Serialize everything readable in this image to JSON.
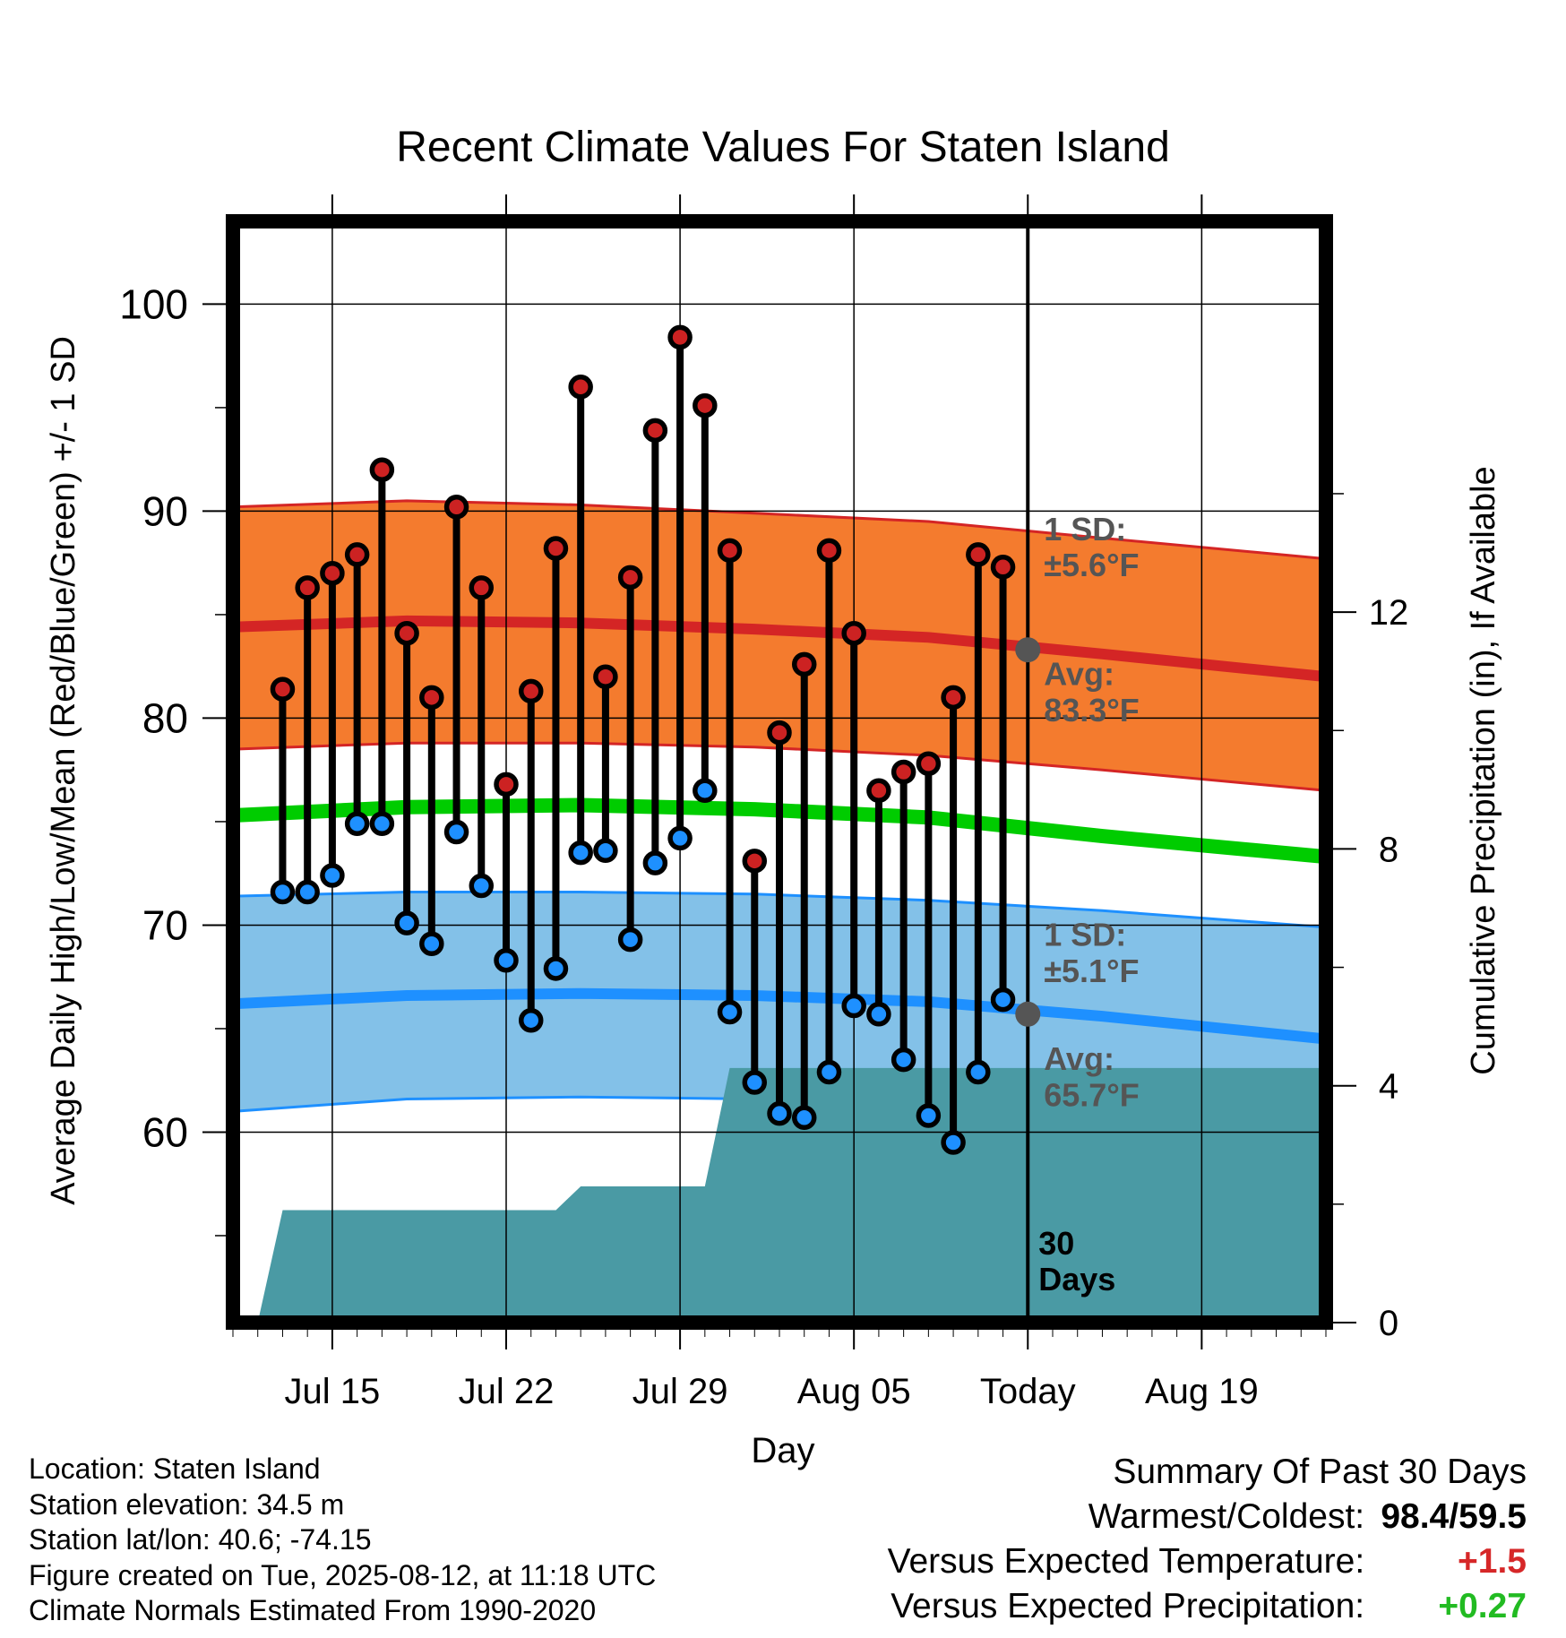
{
  "chart_data": {
    "type": "line",
    "title": "Recent Climate Values For Staten Island",
    "xlabel": "Day",
    "ylabel": "Average Daily High/Low/Mean (Red/Blue/Green) +/- 1 SD",
    "y2label": "Cumulative Precipitation (in), If Available",
    "ylim": [
      50.8,
      104
    ],
    "y2lim": [
      0,
      18.6
    ],
    "xlim": [
      "2025-07-11",
      "2025-08-24"
    ],
    "x_ticks": [
      {
        "date": "2025-07-15",
        "label": "Jul 15"
      },
      {
        "date": "2025-07-22",
        "label": "Jul 22"
      },
      {
        "date": "2025-07-29",
        "label": "Jul 29"
      },
      {
        "date": "2025-08-05",
        "label": "Aug 05"
      },
      {
        "date": "2025-08-12",
        "label": "Today"
      },
      {
        "date": "2025-08-19",
        "label": "Aug 19"
      }
    ],
    "y_ticks": [
      "60",
      "70",
      "80",
      "90",
      "100"
    ],
    "y2_ticks": [
      "0",
      "4",
      "8",
      "12"
    ],
    "grid": true,
    "today": "2025-08-12",
    "today_label": [
      "30",
      "Days"
    ],
    "dates": [
      "2025-07-13",
      "2025-07-14",
      "2025-07-15",
      "2025-07-16",
      "2025-07-17",
      "2025-07-18",
      "2025-07-19",
      "2025-07-20",
      "2025-07-21",
      "2025-07-22",
      "2025-07-23",
      "2025-07-24",
      "2025-07-25",
      "2025-07-26",
      "2025-07-27",
      "2025-07-28",
      "2025-07-29",
      "2025-07-30",
      "2025-07-31",
      "2025-08-01",
      "2025-08-02",
      "2025-08-03",
      "2025-08-04",
      "2025-08-05",
      "2025-08-06",
      "2025-08-07",
      "2025-08-08",
      "2025-08-09",
      "2025-08-10",
      "2025-08-11"
    ],
    "highs": [
      81.4,
      86.3,
      87.0,
      87.9,
      92.0,
      84.1,
      81.0,
      90.2,
      86.3,
      76.8,
      81.3,
      88.2,
      96.0,
      82.0,
      86.8,
      93.9,
      98.4,
      95.1,
      88.1,
      73.1,
      79.3,
      82.6,
      88.1,
      84.1,
      76.5,
      77.4,
      77.8,
      81.0,
      87.9,
      87.3
    ],
    "lows": [
      71.6,
      71.6,
      72.4,
      74.9,
      74.9,
      70.1,
      69.1,
      74.5,
      71.9,
      68.3,
      65.4,
      67.9,
      73.5,
      73.6,
      69.3,
      73.0,
      74.2,
      76.5,
      65.8,
      62.4,
      60.9,
      60.7,
      62.9,
      66.1,
      65.7,
      63.5,
      60.8,
      59.5,
      62.9,
      66.4
    ],
    "precip_cumulative": {
      "dates": [
        "2025-07-12",
        "2025-07-13",
        "2025-07-24",
        "2025-07-25",
        "2025-07-30",
        "2025-07-31",
        "2025-08-24"
      ],
      "values": [
        0,
        1.9,
        1.9,
        2.3,
        2.3,
        4.3,
        4.3
      ]
    },
    "normals": {
      "dates": [
        "2025-07-11",
        "2025-07-18",
        "2025-07-25",
        "2025-08-01",
        "2025-08-08",
        "2025-08-15",
        "2025-08-24"
      ],
      "avg_high": [
        84.4,
        84.7,
        84.6,
        84.3,
        83.9,
        83.1,
        82.0
      ],
      "high_upper": [
        90.2,
        90.5,
        90.3,
        89.9,
        89.5,
        88.7,
        87.7
      ],
      "high_lower": [
        78.5,
        78.8,
        78.8,
        78.6,
        78.2,
        77.5,
        76.5
      ],
      "avg_mean": [
        75.3,
        75.7,
        75.8,
        75.6,
        75.2,
        74.3,
        73.3
      ],
      "avg_low": [
        66.2,
        66.6,
        66.7,
        66.6,
        66.3,
        65.6,
        64.5
      ],
      "low_upper": [
        71.4,
        71.6,
        71.6,
        71.5,
        71.2,
        70.7,
        69.9
      ],
      "low_lower": [
        61.0,
        61.6,
        61.7,
        61.6,
        61.2,
        60.7,
        60.0
      ]
    },
    "annotations": {
      "high_sd": [
        "1 SD:",
        "±5.6°F"
      ],
      "high_avg": [
        "Avg:",
        "83.3°F"
      ],
      "low_sd": [
        "1 SD:",
        "±5.1°F"
      ],
      "low_avg": [
        "Avg:",
        "65.7°F"
      ]
    },
    "today_avg_high": 83.3,
    "today_avg_low": 65.7,
    "colors": {
      "high_band": "#f47b2e",
      "high_line": "#d42525",
      "mean_line": "#00cc00",
      "low_band": "#83c1e8",
      "low_line": "#1e90ff",
      "precip": "#4a9aa4",
      "high_dot": "#cc2222",
      "low_dot": "#1e90ff",
      "today_dot": "#555555",
      "annotation_text": "#555555"
    }
  },
  "footer": {
    "location": "Location: Staten Island",
    "elevation": "Station elevation: 34.5 m",
    "latlon": "Station lat/lon: 40.6; -74.15",
    "created": "Figure created on Tue, 2025-08-12, at 11:18 UTC",
    "normals": "Climate Normals Estimated From 1990-2020"
  },
  "summary": {
    "title": "Summary Of Past 30 Days",
    "warmest_label": "Warmest/Coldest:",
    "warmest_value": "98.4/59.5",
    "temp_label": "Versus Expected Temperature:",
    "temp_value": "+1.5",
    "precip_label": "Versus Expected Precipitation:",
    "precip_value": "+0.27"
  }
}
